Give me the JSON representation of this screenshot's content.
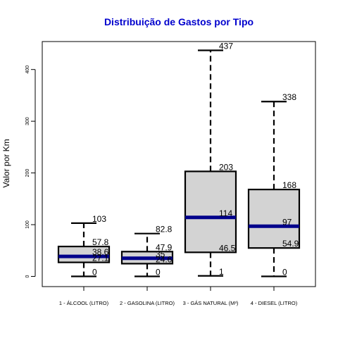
{
  "chart_data": {
    "type": "boxplot",
    "title": "Distribuição de Gastos por Tipo",
    "ylabel": "Valor por Km",
    "xlabel": "",
    "ylim": [
      0,
      450
    ],
    "yticks": [
      "0",
      "100",
      "200",
      "300",
      "400"
    ],
    "categories": [
      "1 - ÁLCOOL (LITRO)",
      "2 - GASOLINA (LITRO)",
      "3 - GÁS NATURAL (M³)",
      "4 - DIESEL (LITRO)"
    ],
    "boxes": [
      {
        "min": 0,
        "q1": 27.1,
        "median": 38.6,
        "q3": 57.8,
        "max": 103,
        "labels": {
          "min": "0",
          "q1": "27.1",
          "median": "38.6",
          "q3": "57.8",
          "max": "103"
        }
      },
      {
        "min": 0,
        "q1": 24.6,
        "median": 35,
        "q3": 47.9,
        "max": 82.8,
        "labels": {
          "min": "0",
          "q1": "24.6",
          "median": "35",
          "q3": "47.9",
          "max": "82.8"
        }
      },
      {
        "min": 1,
        "q1": 46.5,
        "median": 114,
        "q3": 203,
        "max": 437,
        "labels": {
          "min": "1",
          "q1": "46.5",
          "median": "114",
          "q3": "203",
          "max": "437"
        }
      },
      {
        "min": 0,
        "q1": 54.9,
        "median": 97,
        "q3": 168,
        "max": 338,
        "labels": {
          "min": "0",
          "q1": "54.9",
          "median": "97",
          "q3": "168",
          "max": "338"
        }
      }
    ],
    "box_color": "#d3d3d3",
    "median_color": "#00008b",
    "title_color": "#0000cd"
  }
}
